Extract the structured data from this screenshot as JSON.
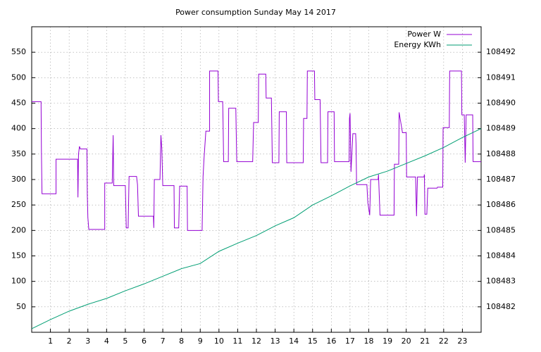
{
  "chart_data": {
    "type": "line",
    "title": "Power consumption Sunday May 14 2017",
    "xlim": [
      0,
      24
    ],
    "xticks": [
      1,
      2,
      3,
      4,
      5,
      6,
      7,
      8,
      9,
      10,
      11,
      12,
      13,
      14,
      15,
      16,
      17,
      18,
      19,
      20,
      21,
      22,
      23
    ],
    "ylim": [
      0,
      600
    ],
    "yticks": [
      50,
      100,
      150,
      200,
      250,
      300,
      350,
      400,
      450,
      500,
      550
    ],
    "y2lim": [
      108481,
      108493
    ],
    "y2ticks": [
      108482,
      108483,
      108484,
      108485,
      108486,
      108487,
      108488,
      108489,
      108490,
      108491,
      108492
    ],
    "grid": true,
    "legend": "top-right",
    "series": [
      {
        "name": "Power W",
        "color": "#9400d3",
        "x": [
          0,
          0.5,
          0.52,
          0.55,
          1.3,
          1.3,
          2.45,
          2.47,
          2.5,
          2.55,
          2.6,
          2.95,
          2.97,
          3.0,
          3.05,
          3.9,
          3.9,
          4.3,
          4.35,
          4.38,
          4.5,
          5.0,
          5.05,
          5.15,
          5.2,
          5.6,
          5.65,
          5.7,
          6.5,
          6.52,
          6.55,
          6.85,
          6.9,
          6.95,
          7.0,
          7.6,
          7.62,
          7.85,
          7.9,
          8.3,
          8.32,
          9.1,
          9.15,
          9.2,
          9.3,
          9.5,
          9.5,
          9.95,
          9.97,
          10.2,
          10.22,
          10.25,
          10.5,
          10.52,
          10.9,
          10.95,
          11.8,
          11.85,
          12.1,
          12.12,
          12.5,
          12.52,
          12.8,
          12.82,
          12.85,
          13.2,
          13.22,
          13.6,
          13.62,
          14.5,
          14.52,
          14.7,
          14.72,
          15.1,
          15.12,
          15.4,
          15.42,
          15.45,
          15.8,
          15.82,
          16.15,
          16.17,
          16.95,
          16.97,
          17.0,
          17.05,
          17.15,
          17.3,
          17.32,
          17.35,
          17.9,
          17.95,
          18.05,
          18.1,
          18.5,
          18.52,
          18.6,
          19.35,
          19.37,
          19.6,
          19.62,
          19.8,
          20.0,
          20.02,
          20.5,
          20.55,
          20.6,
          20.95,
          20.97,
          21.0,
          21.1,
          21.15,
          21.65,
          21.67,
          21.95,
          21.97,
          22.3,
          22.32,
          22.95,
          22.97,
          23.1,
          23.15,
          23.2,
          23.55,
          23.57,
          24
        ],
        "values": [
          453,
          453,
          355,
          272,
          272,
          340,
          340,
          265,
          350,
          365,
          360,
          360,
          270,
          225,
          202,
          202,
          293,
          293,
          387,
          288,
          288,
          288,
          205,
          205,
          306,
          306,
          290,
          228,
          228,
          205,
          300,
          300,
          387,
          360,
          288,
          288,
          205,
          205,
          287,
          287,
          200,
          200,
          305,
          340,
          395,
          395,
          513,
          513,
          453,
          453,
          410,
          335,
          335,
          440,
          440,
          335,
          335,
          412,
          412,
          507,
          507,
          460,
          460,
          410,
          333,
          333,
          433,
          433,
          333,
          333,
          420,
          420,
          513,
          513,
          457,
          457,
          410,
          333,
          333,
          433,
          433,
          335,
          335,
          420,
          430,
          315,
          390,
          390,
          370,
          290,
          290,
          255,
          230,
          300,
          300,
          310,
          230,
          230,
          330,
          330,
          432,
          392,
          392,
          305,
          305,
          228,
          305,
          305,
          310,
          232,
          232,
          283,
          283,
          285,
          285,
          402,
          402,
          513,
          513,
          427,
          427,
          333,
          427,
          427,
          335,
          335
        ]
      },
      {
        "name": "Energy KWh",
        "color": "#009e73",
        "axis": "y2",
        "x": [
          0,
          1,
          2,
          3,
          4,
          5,
          6,
          7,
          8,
          9,
          10,
          11,
          12,
          13,
          14,
          15,
          16,
          17,
          18,
          19,
          20,
          21,
          22,
          23,
          24
        ],
        "values": [
          108481.14,
          108481.5,
          108481.83,
          108482.1,
          108482.33,
          108482.63,
          108482.9,
          108483.2,
          108483.5,
          108483.7,
          108484.18,
          108484.5,
          108484.8,
          108485.18,
          108485.5,
          108486.0,
          108486.36,
          108486.75,
          108487.1,
          108487.33,
          108487.63,
          108487.93,
          108488.26,
          108488.65,
          108489.0
        ]
      }
    ]
  }
}
